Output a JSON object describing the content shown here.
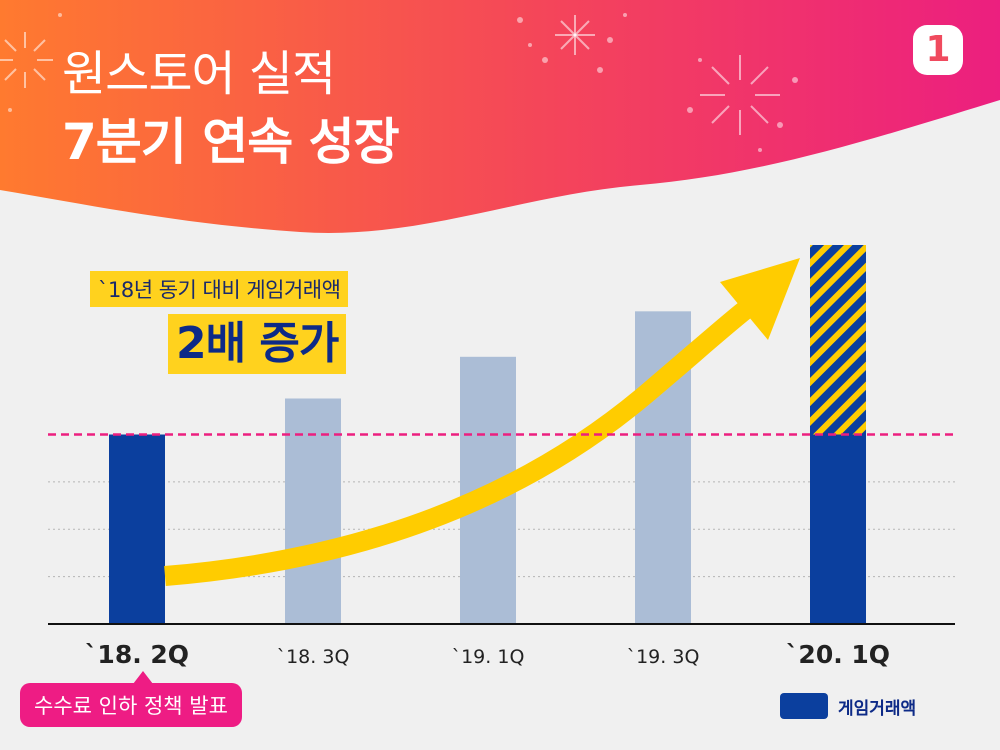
{
  "header": {
    "title_line1": "원스토어 실적",
    "title_line2": "7분기 연속 성장",
    "logo_text": "1"
  },
  "callout": {
    "subtitle": "`18년 동기 대비 게임거래액",
    "headline": "2배 증가"
  },
  "note": {
    "text": "수수료 인하 정책 발표"
  },
  "colors": {
    "header_gradient_start": "#ff7a2f",
    "header_gradient_end": "#ec1f7f",
    "bar_highlight": "#0b3f9e",
    "bar_normal": "#abbdd6",
    "arrow": "#ffcc00",
    "baseline_dash": "#ec1f7f",
    "callout_bg": "#ffd21e"
  },
  "chart_data": {
    "type": "bar",
    "categories": [
      "`18. 2Q",
      "`18. 3Q",
      "`19. 1Q",
      "`19. 3Q",
      "`20. 1Q"
    ],
    "highlighted_categories": [
      "`18. 2Q",
      "`20. 1Q"
    ],
    "values": [
      1.0,
      1.19,
      1.41,
      1.65,
      2.0
    ],
    "unit": "relative to `18. 2Q",
    "segments_last_bar": {
      "base": 1.0,
      "growth": 1.0
    },
    "reference_line": 1.0,
    "ylim": [
      0,
      2.0
    ],
    "grid": true,
    "legend": {
      "position": "bottom-right",
      "label": "게임거래액"
    }
  }
}
